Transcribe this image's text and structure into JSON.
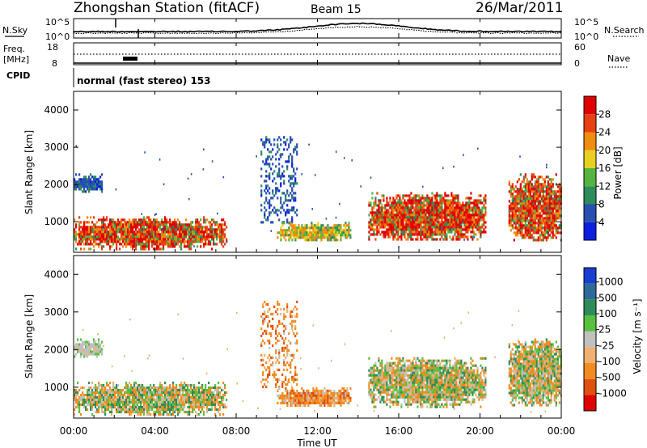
{
  "header": {
    "station": "Zhongshan Station (fitACF)",
    "beam": "Beam 15",
    "date": "26/Mar/2011"
  },
  "nsky_panel": {
    "left_label": "N.Sky",
    "right_label": "N.Search",
    "left_ticks": [
      "10^5",
      "10^0"
    ],
    "right_ticks": [
      "10^5",
      "10^0"
    ]
  },
  "freq_panel": {
    "left_label_1": "Freq.",
    "left_label_2": "[MHz]",
    "left_ticks": [
      "18",
      "8"
    ],
    "right_label": "Nave",
    "right_ticks": [
      "60",
      "0"
    ],
    "cpid_label": "CPID"
  },
  "cpid_text": "normal (fast stereo) 153",
  "x_axis": {
    "label": "Time UT",
    "ticks": [
      "00:00",
      "04:00",
      "08:00",
      "12:00",
      "16:00",
      "20:00",
      "00:00"
    ]
  },
  "range_axis": {
    "label": "Slant Range [km]",
    "ticks": [
      "1000",
      "2000",
      "3000",
      "4000"
    ]
  },
  "power_colorbar": {
    "label": "Power [dB]",
    "ticks": [
      "4",
      "8",
      "12",
      "16",
      "20",
      "24",
      "28"
    ],
    "colors": [
      "#0a1fe0",
      "#2850b0",
      "#2e8c5a",
      "#55b440",
      "#e8d020",
      "#f08c10",
      "#e84010",
      "#e00000"
    ]
  },
  "velocity_colorbar": {
    "label": "Velocity [m s⁻¹]",
    "ticks": [
      "1000",
      "500",
      "100",
      "25",
      "-25",
      "-100",
      "-500",
      "-1000"
    ],
    "colors": [
      "#1a3dd0",
      "#2d6a9a",
      "#2e8c5a",
      "#58c040",
      "#c0c0c0",
      "#f0b070",
      "#f08c20",
      "#e05010",
      "#e00000"
    ]
  },
  "chart_data": {
    "type": "heatmap",
    "title": "Zhongshan Station (fitACF)",
    "xlabel": "Time UT",
    "ylabel": "Slant Range [km]",
    "xlim_hours": [
      0,
      24
    ],
    "ylim_km": [
      180,
      4500
    ],
    "x_ticks": [
      "00:00",
      "04:00",
      "08:00",
      "12:00",
      "16:00",
      "20:00",
      "00:00"
    ],
    "y_ticks": [
      1000,
      2000,
      3000,
      4000
    ],
    "panels": [
      {
        "quantity": "Power [dB]",
        "color_levels": [
          4,
          8,
          12,
          16,
          20,
          24,
          28
        ],
        "regions": [
          {
            "t0": 0.0,
            "t1": 1.4,
            "r0": 1800,
            "r1": 2300,
            "level": "low"
          },
          {
            "t0": 0.0,
            "t1": 7.5,
            "r0": 300,
            "r1": 1150,
            "level": "high"
          },
          {
            "t0": 9.2,
            "t1": 11.0,
            "r0": 1000,
            "r1": 3300,
            "level": "low"
          },
          {
            "t0": 10.0,
            "t1": 13.6,
            "r0": 500,
            "r1": 1000,
            "level": "mid"
          },
          {
            "t0": 14.5,
            "t1": 20.3,
            "r0": 500,
            "r1": 1800,
            "level": "high"
          },
          {
            "t0": 21.4,
            "t1": 24.0,
            "r0": 500,
            "r1": 2300,
            "level": "high"
          }
        ]
      },
      {
        "quantity": "Velocity [m s⁻¹]",
        "color_levels": [
          1000,
          500,
          100,
          25,
          -25,
          -100,
          -500,
          -1000
        ],
        "regions": [
          {
            "t0": 0.0,
            "t1": 1.4,
            "r0": 1800,
            "r1": 2300,
            "level": "near-zero"
          },
          {
            "t0": 0.0,
            "t1": 7.5,
            "r0": 300,
            "r1": 1150,
            "level": "mixed"
          },
          {
            "t0": 9.2,
            "t1": 11.0,
            "r0": 1000,
            "r1": 3300,
            "level": "negative"
          },
          {
            "t0": 10.0,
            "t1": 13.6,
            "r0": 500,
            "r1": 1000,
            "level": "negative"
          },
          {
            "t0": 14.5,
            "t1": 20.3,
            "r0": 500,
            "r1": 1800,
            "level": "mixed"
          },
          {
            "t0": 21.4,
            "t1": 24.0,
            "r0": 500,
            "r1": 2300,
            "level": "mixed"
          }
        ]
      }
    ]
  }
}
